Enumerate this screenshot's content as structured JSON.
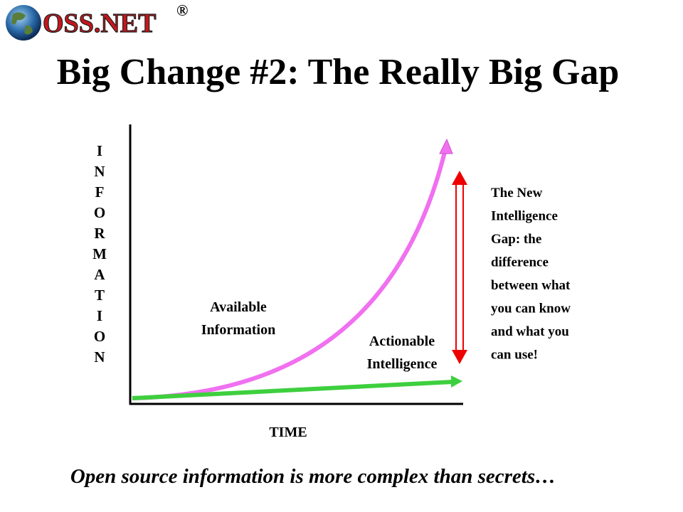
{
  "header": {
    "logo": "OSS.NET",
    "registered": "®",
    "title": "Big Change #2: The Really Big Gap"
  },
  "diagram": {
    "y_axis_label": "INFORMATION",
    "x_axis_label": "TIME",
    "upper_curve_label": [
      "Available",
      "Information"
    ],
    "lower_curve_label": [
      "Actionable",
      "Intelligence"
    ],
    "gap_note": [
      "The New",
      "Intelligence",
      "Gap:  the",
      "difference",
      "between what",
      "you can know",
      "and what you",
      "can use!"
    ]
  },
  "footer": "Open source information is more complex than secrets…"
}
